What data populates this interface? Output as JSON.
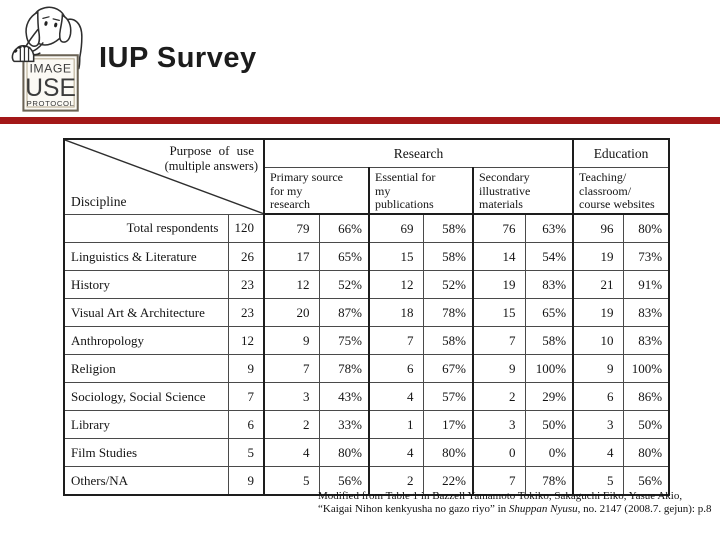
{
  "title": "IUP Survey",
  "accent_color": "#A31718",
  "logo": {
    "line1": "IMAGE",
    "line2": "USE",
    "line3": "PROTOCOL"
  },
  "table": {
    "corner": {
      "top_label": "Purpose of use",
      "top_sub": "(multiple answers)",
      "bottom_label": "Discipline"
    },
    "groups": [
      {
        "label": "Research"
      },
      {
        "label": "Education"
      }
    ],
    "subheaders": [
      "Primary source\nfor my\nresearch",
      "Essential for\nmy\npublications",
      "Secondary\nillustrative\nmaterials",
      "Teaching/\nclassroom/\ncourse websites"
    ],
    "rows": [
      {
        "name": "Total respondents",
        "total": "120",
        "cells": [
          "79",
          "66%",
          "69",
          "58%",
          "76",
          "63%",
          "96",
          "80%"
        ]
      },
      {
        "name": "Linguistics & Literature",
        "total": "26",
        "cells": [
          "17",
          "65%",
          "15",
          "58%",
          "14",
          "54%",
          "19",
          "73%"
        ]
      },
      {
        "name": "History",
        "total": "23",
        "cells": [
          "12",
          "52%",
          "12",
          "52%",
          "19",
          "83%",
          "21",
          "91%"
        ]
      },
      {
        "name": "Visual Art & Architecture",
        "total": "23",
        "cells": [
          "20",
          "87%",
          "18",
          "78%",
          "15",
          "65%",
          "19",
          "83%"
        ]
      },
      {
        "name": "Anthropology",
        "total": "12",
        "cells": [
          "9",
          "75%",
          "7",
          "58%",
          "7",
          "58%",
          "10",
          "83%"
        ]
      },
      {
        "name": "Religion",
        "total": "9",
        "cells": [
          "7",
          "78%",
          "6",
          "67%",
          "9",
          "100%",
          "9",
          "100%"
        ]
      },
      {
        "name": "Sociology, Social Science",
        "total": "7",
        "cells": [
          "3",
          "43%",
          "4",
          "57%",
          "2",
          "29%",
          "6",
          "86%"
        ]
      },
      {
        "name": "Library",
        "total": "6",
        "cells": [
          "2",
          "33%",
          "1",
          "17%",
          "3",
          "50%",
          "3",
          "50%"
        ]
      },
      {
        "name": "Film Studies",
        "total": "5",
        "cells": [
          "4",
          "80%",
          "4",
          "80%",
          "0",
          "0%",
          "4",
          "80%"
        ]
      },
      {
        "name": "Others/NA",
        "total": "9",
        "cells": [
          "5",
          "56%",
          "2",
          "22%",
          "7",
          "78%",
          "5",
          "56%"
        ]
      }
    ]
  },
  "citation": {
    "part1": "Modified from Table 1 in Bazzell Yamamoto Tokiko, Sakaguchi Eiko, Yasue Akio, “Kaigai Nihon kenkyusha no gazo riyo” in ",
    "italic": "Shuppan Nyusu",
    "part2": ", no. 2147 (2008.7. gejun): p.8"
  }
}
